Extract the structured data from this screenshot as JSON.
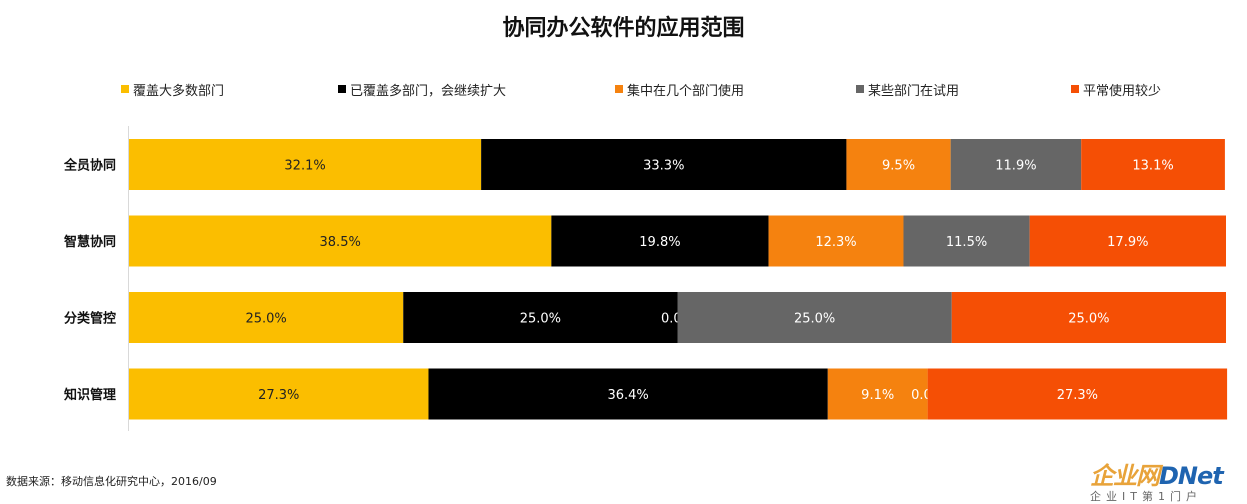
{
  "chart_data": {
    "type": "bar",
    "orientation": "horizontal",
    "stacked": "percent",
    "title": "协同办公软件的应用范围",
    "categories": [
      "全员协同",
      "智慧协同",
      "分类管控",
      "知识管理"
    ],
    "series": [
      {
        "name": "覆盖大多数部门",
        "color": "#fbbe00",
        "label_color": "#222222",
        "values": [
          32.1,
          38.5,
          25.0,
          27.3
        ],
        "labels": [
          "32.1%",
          "38.5%",
          "25.0%",
          "27.3%"
        ]
      },
      {
        "name": "已覆盖多部门，会继续扩大",
        "color": "#000000",
        "label_color": "#ffffff",
        "values": [
          33.3,
          19.8,
          25.0,
          36.4
        ],
        "labels": [
          "33.3%",
          "19.8%",
          "25.0%",
          "36.4%"
        ]
      },
      {
        "name": "集中在几个部门使用",
        "color": "#f5820f",
        "label_color": "#ffffff",
        "values": [
          9.5,
          12.3,
          0.0,
          9.1
        ],
        "labels": [
          "9.5%",
          "12.3%",
          "0.0%",
          "9.1%"
        ]
      },
      {
        "name": "某些部门在试用",
        "color": "#666666",
        "label_color": "#ffffff",
        "values": [
          11.9,
          11.5,
          25.0,
          0.0
        ],
        "labels": [
          "11.9%",
          "11.5%",
          "25.0%",
          "0.0%"
        ]
      },
      {
        "name": "平常使用较少",
        "color": "#f54f05",
        "label_color": "#ffffff",
        "values": [
          13.1,
          17.9,
          25.0,
          27.3
        ],
        "labels": [
          "13.1%",
          "17.9%",
          "25.0%",
          "27.3%"
        ]
      }
    ],
    "xlim": [
      0,
      100
    ],
    "legend_position": "top",
    "grid": false
  },
  "source_note": "数据来源：移动信息化研究中心，2016/09",
  "logo": {
    "main_cn": "企业网",
    "main_en": "DNet",
    "sub": "企业IT第1门户"
  }
}
